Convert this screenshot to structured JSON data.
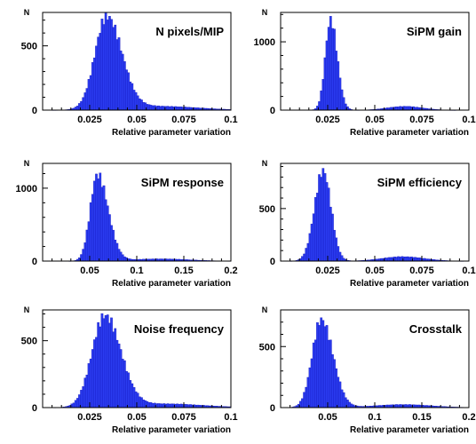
{
  "chart_data": [
    {
      "type": "bar",
      "title": "N pixels/MIP",
      "ylabel": "N",
      "xlabel": "Relative parameter variation",
      "xlim": [
        0,
        0.1
      ],
      "ylim": [
        0,
        760
      ],
      "xticks": [
        "0.025",
        "0.05",
        "0.075",
        "0.1"
      ],
      "yticks": [
        "500"
      ],
      "ytick_values": [
        500
      ],
      "zero_label": "0",
      "peak": 0.034,
      "peak_value": 720,
      "sigma_left": 0.0062,
      "sigma_right": 0.008,
      "tail_center": 0.062,
      "tail_height": 30,
      "tail_width": 0.02,
      "bins": 100,
      "legend": "none",
      "grid": false
    },
    {
      "type": "bar",
      "title": "SiPM gain",
      "ylabel": "N",
      "xlabel": "Relative parameter variation",
      "xlim": [
        0,
        0.1
      ],
      "ylim": [
        0,
        1430
      ],
      "xticks": [
        "0.025",
        "0.05",
        "0.075",
        "0.1"
      ],
      "yticks": [
        "1000"
      ],
      "ytick_values": [
        1000
      ],
      "zero_label": "0",
      "peak": 0.0265,
      "peak_value": 1320,
      "sigma_left": 0.0028,
      "sigma_right": 0.0035,
      "tail_center": 0.066,
      "tail_height": 55,
      "tail_width": 0.009,
      "bins": 100,
      "legend": "none",
      "grid": false
    },
    {
      "type": "bar",
      "title": "SiPM response",
      "ylabel": "N",
      "xlabel": "Relative parameter variation",
      "xlim": [
        0,
        0.2
      ],
      "ylim": [
        0,
        1340
      ],
      "xticks": [
        "0.05",
        "0.1",
        "0.15",
        "0.2"
      ],
      "yticks": [
        "1000"
      ],
      "ytick_values": [
        1000
      ],
      "zero_label": "0",
      "peak": 0.058,
      "peak_value": 1180,
      "sigma_left": 0.0075,
      "sigma_right": 0.0115,
      "tail_center": 0.125,
      "tail_height": 30,
      "tail_width": 0.03,
      "bins": 100,
      "legend": "none",
      "grid": false
    },
    {
      "type": "bar",
      "title": "SiPM efficiency",
      "ylabel": "N",
      "xlabel": "Relative parameter variation",
      "xlim": [
        0,
        0.1
      ],
      "ylim": [
        0,
        930
      ],
      "xticks": [
        "0.025",
        "0.05",
        "0.075",
        "0.1"
      ],
      "yticks": [
        "500"
      ],
      "ytick_values": [
        500
      ],
      "zero_label": "0",
      "peak": 0.0225,
      "peak_value": 860,
      "sigma_left": 0.0045,
      "sigma_right": 0.0042,
      "tail_center": 0.065,
      "tail_height": 42,
      "tail_width": 0.011,
      "bins": 100,
      "legend": "none",
      "grid": false
    },
    {
      "type": "bar",
      "title": "Noise frequency",
      "ylabel": "N",
      "xlabel": "Relative parameter variation",
      "xlim": [
        0,
        0.1
      ],
      "ylim": [
        0,
        730
      ],
      "xticks": [
        "0.025",
        "0.05",
        "0.075",
        "0.1"
      ],
      "yticks": [
        "500"
      ],
      "ytick_values": [
        500
      ],
      "zero_label": "0",
      "peak": 0.033,
      "peak_value": 680,
      "sigma_left": 0.0068,
      "sigma_right": 0.0085,
      "tail_center": 0.065,
      "tail_height": 28,
      "tail_width": 0.02,
      "bins": 100,
      "legend": "none",
      "grid": false
    },
    {
      "type": "bar",
      "title": "Crosstalk",
      "ylabel": "N",
      "xlabel": "Relative parameter variation",
      "xlim": [
        0,
        0.2
      ],
      "ylim": [
        0,
        800
      ],
      "xticks": [
        "0.05",
        "0.1",
        "0.15",
        "0.2"
      ],
      "yticks": [
        "500"
      ],
      "ytick_values": [
        500
      ],
      "zero_label": "0",
      "peak": 0.043,
      "peak_value": 720,
      "sigma_left": 0.0095,
      "sigma_right": 0.0125,
      "tail_center": 0.13,
      "tail_height": 25,
      "tail_width": 0.03,
      "bins": 100,
      "legend": "none",
      "grid": false
    }
  ],
  "style": {
    "bar_fill": "#2b3cf0",
    "bar_edge": "#0a0ab0",
    "axis_color": "#000000",
    "background": "#ffffff"
  }
}
